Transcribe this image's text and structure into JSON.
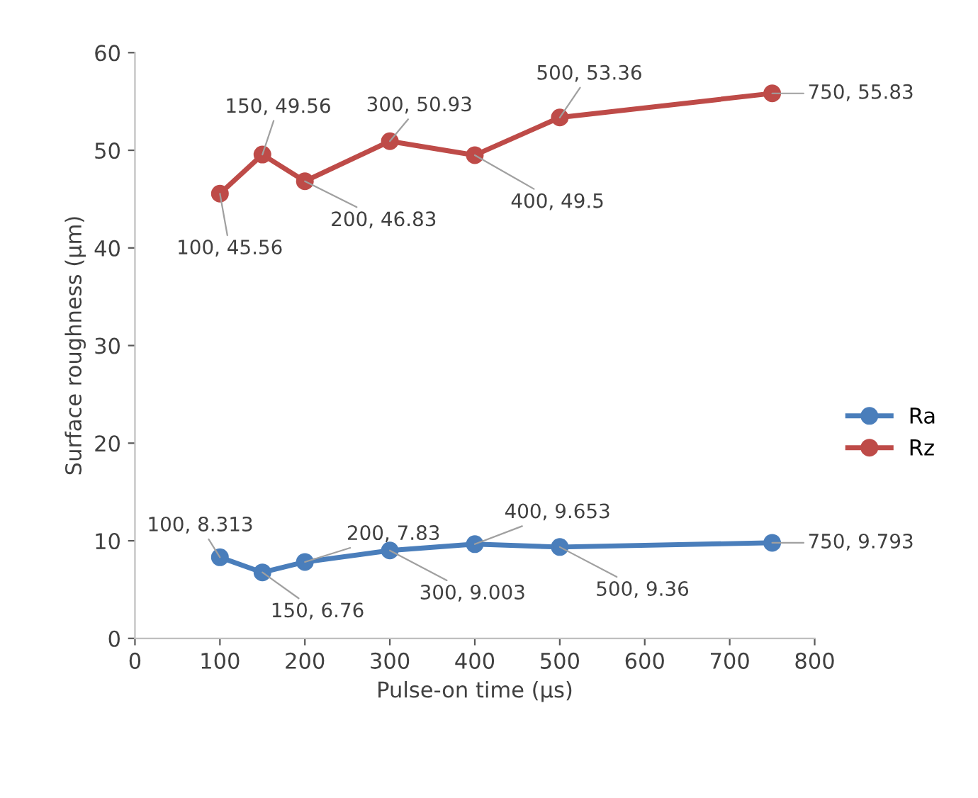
{
  "chart_data": {
    "type": "line",
    "xlabel": "Pulse-on time (µs)",
    "ylabel": "Surface roughness (µm)",
    "x": [
      100,
      150,
      200,
      300,
      400,
      500,
      750
    ],
    "series": [
      {
        "name": "Ra",
        "color": "#4a7ebb",
        "values": [
          8.313,
          6.76,
          7.83,
          9.003,
          9.653,
          9.36,
          9.793
        ],
        "value_labels": [
          "100, 8.313",
          "150, 6.76",
          "200, 7.83",
          "300, 9.003",
          "400, 9.653",
          "500, 9.36",
          "750, 9.793"
        ]
      },
      {
        "name": "Rz",
        "color": "#be4b48",
        "values": [
          45.56,
          49.56,
          46.83,
          50.93,
          49.5,
          53.36,
          55.83
        ],
        "value_labels": [
          "100, 45.56",
          "150, 49.56",
          "200, 46.83",
          "300, 50.93",
          "400, 49.5",
          "500, 53.36",
          "750, 55.83"
        ]
      }
    ],
    "xlim": [
      0,
      800
    ],
    "xticks": [
      0,
      100,
      200,
      300,
      400,
      500,
      600,
      700,
      800
    ],
    "ylim": [
      0,
      60
    ],
    "yticks": [
      0,
      10,
      20,
      30,
      40,
      50,
      60
    ],
    "grid": false,
    "legend": "right",
    "marker": "circle",
    "line_style": "solid"
  }
}
